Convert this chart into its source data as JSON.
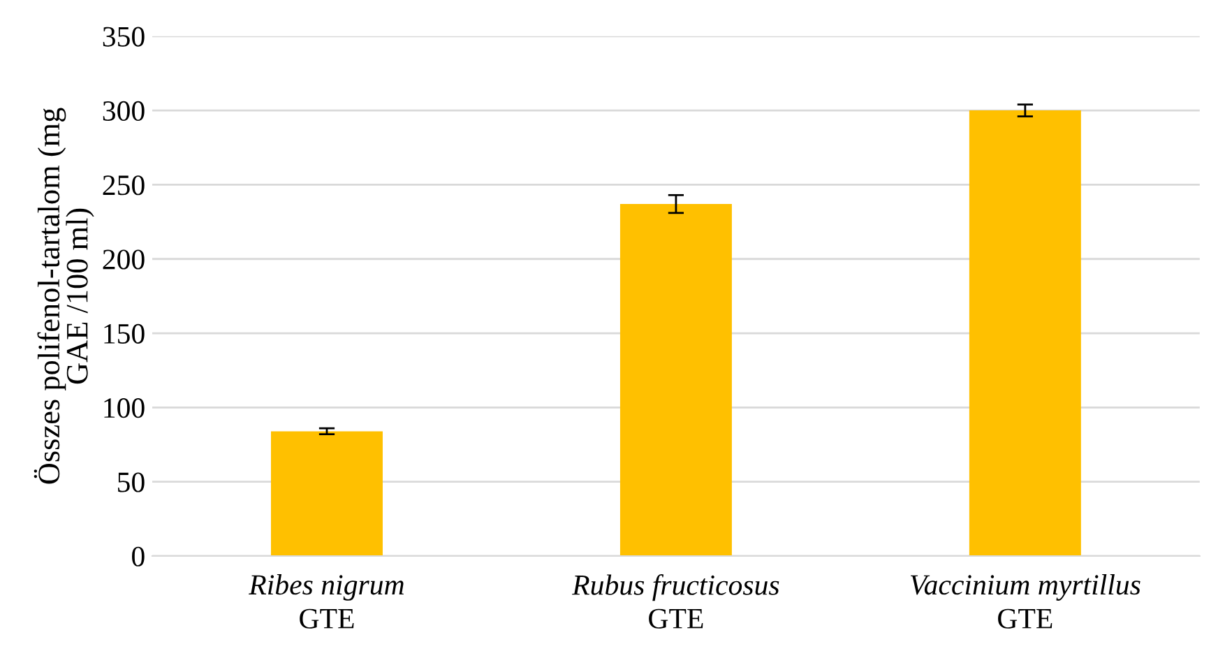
{
  "chart_data": {
    "type": "bar",
    "ylabel": "Összes polifenol-tartalom (mg\nGAE /100 ml)",
    "categories": [
      "Ribes nigrum\nGTE",
      "Rubus fructicosus\nGTE",
      "Vaccinium myrtillus\nGTE"
    ],
    "values": [
      84,
      237,
      300
    ],
    "errors": [
      2,
      6,
      4
    ],
    "color": "#ffc000",
    "ylim": [
      0,
      350
    ],
    "yticks": [
      0,
      50,
      100,
      150,
      200,
      250,
      300,
      350
    ],
    "grid": "y",
    "legend": false
  }
}
